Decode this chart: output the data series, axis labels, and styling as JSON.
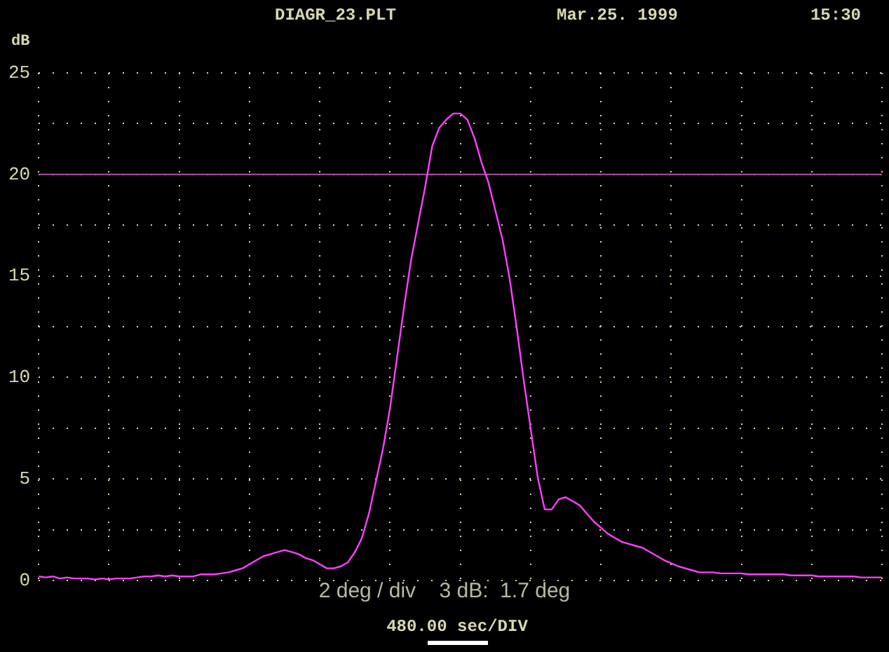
{
  "chart_data": {
    "type": "line",
    "title": "DIAGR_23.PLT",
    "subtitle": "Mar.25. 1999",
    "ylabel": "dB",
    "annotations": [
      "15:30",
      "2 deg / div    3 dB:  1.7 deg",
      "480.00 sec/DIV"
    ],
    "categories": [
      null,
      null,
      null,
      null,
      null,
      null,
      null,
      null,
      null,
      null,
      null,
      null,
      null,
      null,
      null,
      null,
      null,
      null,
      null,
      null,
      null,
      null,
      null,
      null,
      null,
      null,
      null,
      null,
      null,
      null,
      null,
      null,
      null,
      null,
      null,
      null,
      null,
      null,
      null,
      null,
      null,
      null,
      null,
      null,
      null,
      null,
      null,
      null,
      null,
      null,
      null,
      null,
      null,
      null,
      null,
      null,
      null,
      null,
      null,
      null,
      null,
      null,
      null,
      null,
      null,
      null,
      null,
      null,
      null,
      null,
      null,
      null,
      null,
      null,
      null,
      null,
      null,
      null,
      null,
      null,
      null,
      null,
      null,
      null,
      null,
      null,
      null,
      null,
      null,
      null,
      null,
      null,
      null,
      null,
      null,
      null,
      null,
      null,
      null,
      null,
      null,
      null,
      null,
      null,
      null,
      null,
      null,
      null,
      null,
      null,
      null,
      null,
      null,
      null,
      null,
      null,
      null,
      null,
      null,
      null,
      null
    ],
    "series": [
      {
        "color": "#ff40ff",
        "values": [
          0.2,
          0.15,
          0.2,
          0.1,
          0.15,
          0.1,
          0.1,
          0.1,
          0.05,
          0.1,
          0.05,
          0.1,
          0.1,
          0.1,
          0.15,
          0.2,
          0.2,
          0.25,
          0.2,
          0.25,
          0.2,
          0.2,
          0.2,
          0.3,
          0.3,
          0.3,
          0.35,
          0.4,
          0.5,
          0.6,
          0.8,
          1.0,
          1.2,
          1.3,
          1.4,
          1.5,
          1.4,
          1.3,
          1.1,
          1.0,
          0.8,
          0.6,
          0.6,
          0.7,
          0.9,
          1.4,
          2.1,
          3.3,
          4.9,
          6.5,
          8.5,
          11,
          13.5,
          15.8,
          17.6,
          19.4,
          21.4,
          22.3,
          22.7,
          23.0,
          23.0,
          22.7,
          21.8,
          20.6,
          19.6,
          18.2,
          16.8,
          14.9,
          12.5,
          9.9,
          7.5,
          5.1,
          3.5,
          3.5,
          4.0,
          4.1,
          3.9,
          3.7,
          3.3,
          2.9,
          2.6,
          2.3,
          2.1,
          1.9,
          1.8,
          1.7,
          1.6,
          1.4,
          1.2,
          1.0,
          0.85,
          0.7,
          0.6,
          0.5,
          0.4,
          0.4,
          0.4,
          0.35,
          0.35,
          0.35,
          0.35,
          0.3,
          0.3,
          0.3,
          0.3,
          0.3,
          0.3,
          0.25,
          0.25,
          0.25,
          0.25,
          0.2,
          0.2,
          0.2,
          0.2,
          0.2,
          0.2,
          0.15,
          0.15,
          0.15,
          0.15
        ]
      }
    ],
    "ylim": [
      0,
      25
    ],
    "yticks": [
      0,
      {
        "value": 2.5,
        "label": null
      },
      5,
      {
        "value": 7.5,
        "label": null
      },
      10,
      {
        "value": 12.5,
        "label": null
      },
      15,
      {
        "value": 17.5,
        "label": null
      },
      20,
      {
        "value": 22.5,
        "label": null
      },
      25
    ],
    "ref_lines": [
      {
        "axis": "y",
        "value": 20,
        "color": "#b050b0"
      }
    ],
    "grid": true,
    "tick_labels": "y",
    "marker": "none",
    "line_style": "solid",
    "legend": false
  }
}
